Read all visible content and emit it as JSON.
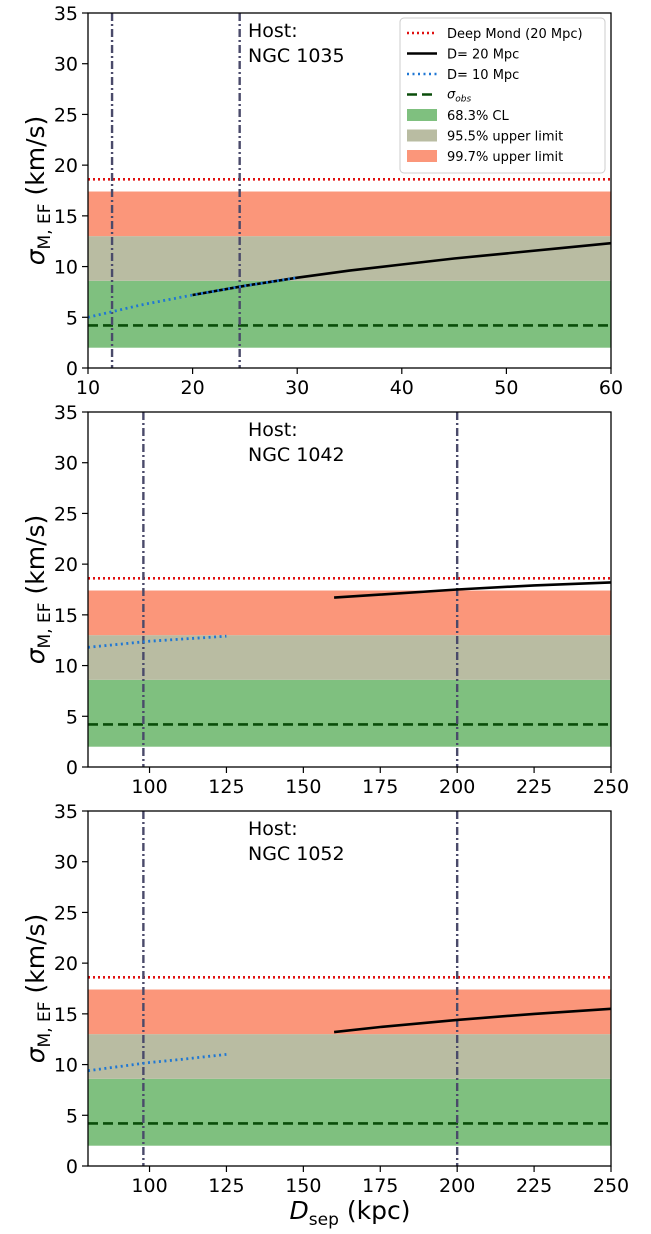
{
  "colors": {
    "deep_mond": "#e01010",
    "d20": "#000000",
    "d10": "#1f77d4",
    "sigma_obs": "#0a4d0a",
    "cl68": "#7fc07f",
    "ul95": "#b9bca2",
    "ul997": "#fb967a",
    "vline": "#4a4a6a"
  },
  "legend": {
    "deep_mond": "Deep Mond (20 Mpc)",
    "d20": "D= 20 Mpc",
    "d10": "D= 10 Mpc",
    "sigma_obs_base": "σ",
    "sigma_obs_sub": "obs",
    "cl68": "68.3% CL",
    "ul95": "95.5% upper limit",
    "ul997": "99.7% upper limit"
  },
  "axes_text": {
    "ylabel_sigma": "σ",
    "ylabel_sub": "M, EF",
    "ylabel_unit": " (km/s)",
    "xlabel_D": "D",
    "xlabel_sub": "sep",
    "xlabel_unit": " (kpc)"
  },
  "chart_data": [
    {
      "type": "line",
      "host_label": "Host:",
      "host_name": "NGC 1035",
      "xlim": [
        10,
        60
      ],
      "ylim": [
        0,
        35
      ],
      "xticks": [
        10,
        20,
        30,
        40,
        50,
        60
      ],
      "yticks": [
        0,
        5,
        10,
        15,
        20,
        25,
        30,
        35
      ],
      "bands": {
        "cl68": [
          2,
          8.6
        ],
        "ul95": [
          8.6,
          13
        ],
        "ul997": [
          13,
          17.4
        ]
      },
      "deep_mond": 18.6,
      "sigma_obs": 4.2,
      "vlines": [
        12.3,
        24.5
      ],
      "series": [
        {
          "name": "D= 20 Mpc",
          "key": "d20",
          "x": [
            20,
            25,
            30,
            35,
            40,
            45,
            50,
            55,
            60
          ],
          "y": [
            7.2,
            8.1,
            8.9,
            9.6,
            10.2,
            10.8,
            11.3,
            11.8,
            12.3
          ]
        },
        {
          "name": "D= 10 Mpc",
          "key": "d10",
          "x": [
            10,
            15,
            20,
            25,
            30
          ],
          "y": [
            5.0,
            6.2,
            7.2,
            8.1,
            8.9
          ]
        }
      ]
    },
    {
      "type": "line",
      "host_label": "Host:",
      "host_name": "NGC 1042",
      "xlim": [
        80,
        250
      ],
      "ylim": [
        0,
        35
      ],
      "xticks": [
        100,
        125,
        150,
        175,
        200,
        225,
        250
      ],
      "yticks": [
        0,
        5,
        10,
        15,
        20,
        25,
        30,
        35
      ],
      "bands": {
        "cl68": [
          2,
          8.6
        ],
        "ul95": [
          8.6,
          13
        ],
        "ul997": [
          13,
          17.4
        ]
      },
      "deep_mond": 18.6,
      "sigma_obs": 4.2,
      "vlines": [
        98,
        200
      ],
      "series": [
        {
          "name": "D= 20 Mpc",
          "key": "d20",
          "x": [
            160,
            175,
            200,
            225,
            250
          ],
          "y": [
            16.7,
            17.0,
            17.5,
            17.9,
            18.2
          ]
        },
        {
          "name": "D= 10 Mpc",
          "key": "d10",
          "x": [
            80,
            90,
            100,
            110,
            125
          ],
          "y": [
            11.8,
            12.1,
            12.4,
            12.6,
            12.9
          ]
        }
      ]
    },
    {
      "type": "line",
      "host_label": "Host:",
      "host_name": "NGC 1052",
      "xlim": [
        80,
        250
      ],
      "ylim": [
        0,
        35
      ],
      "xticks": [
        100,
        125,
        150,
        175,
        200,
        225,
        250
      ],
      "yticks": [
        0,
        5,
        10,
        15,
        20,
        25,
        30,
        35
      ],
      "bands": {
        "cl68": [
          2,
          8.6
        ],
        "ul95": [
          8.6,
          13
        ],
        "ul997": [
          13,
          17.4
        ]
      },
      "deep_mond": 18.6,
      "sigma_obs": 4.2,
      "vlines": [
        98,
        200
      ],
      "series": [
        {
          "name": "D= 20 Mpc",
          "key": "d20",
          "x": [
            160,
            175,
            200,
            225,
            250
          ],
          "y": [
            13.2,
            13.7,
            14.4,
            15.0,
            15.5
          ]
        },
        {
          "name": "D= 10 Mpc",
          "key": "d10",
          "x": [
            80,
            90,
            100,
            110,
            125
          ],
          "y": [
            9.4,
            9.8,
            10.2,
            10.5,
            11.0
          ]
        }
      ]
    }
  ]
}
